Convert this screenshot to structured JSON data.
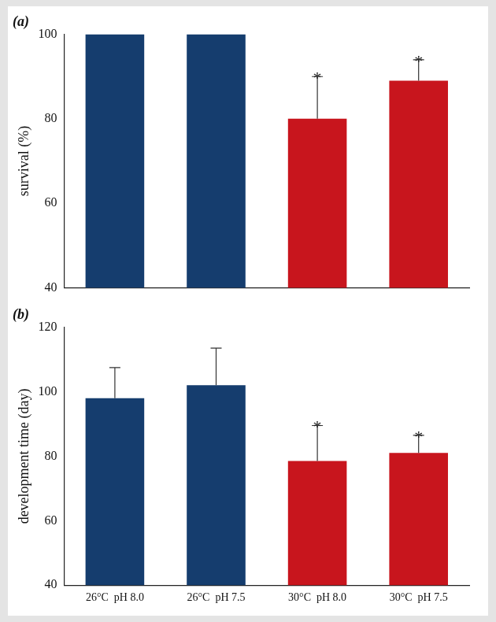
{
  "chart_data": [
    {
      "type": "bar",
      "title": "(a)",
      "categories": [
        "26°C  pH 8.0",
        "26°C  pH 7.5",
        "30°C  pH 8.0",
        "30°C  pH 7.5"
      ],
      "values": [
        100,
        100,
        80,
        89
      ],
      "errors": [
        0,
        0,
        10,
        5
      ],
      "colors": [
        "#153d6e",
        "#153d6e",
        "#c8151d",
        "#c8151d"
      ],
      "y_label": "survival (%)",
      "ylim": [
        40,
        100
      ],
      "yticks": [
        40,
        60,
        80,
        100
      ],
      "grid": false,
      "tick_labels": "y",
      "annotations": [
        {
          "category": "30°C  pH 8.0",
          "text": "*"
        },
        {
          "category": "30°C  pH 7.5",
          "text": "*"
        }
      ]
    },
    {
      "type": "bar",
      "title": "(b)",
      "categories": [
        "26°C  pH 8.0",
        "26°C  pH 7.5",
        "30°C  pH 8.0",
        "30°C  pH 7.5"
      ],
      "values": [
        98,
        102,
        78.5,
        81
      ],
      "errors": [
        9.5,
        11.5,
        11,
        5.5
      ],
      "colors": [
        "#153d6e",
        "#153d6e",
        "#c8151d",
        "#c8151d"
      ],
      "y_label": "development time (day)",
      "ylim": [
        40,
        120
      ],
      "yticks": [
        40,
        60,
        80,
        100,
        120
      ],
      "grid": false,
      "annotations": [
        {
          "category": "30°C  pH 8.0",
          "text": "*"
        },
        {
          "category": "30°C  pH 7.5",
          "text": "*"
        }
      ]
    }
  ]
}
